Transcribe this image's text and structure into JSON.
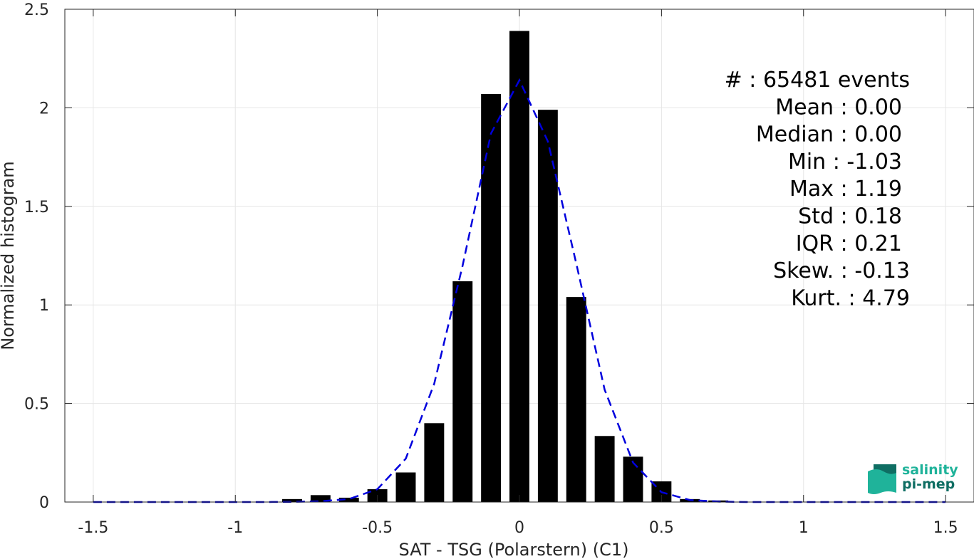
{
  "chart_data": {
    "type": "bar",
    "title": "",
    "xlabel": "SAT - TSG (Polarstern) (C1)",
    "ylabel": "Normalized histogram",
    "xlim": [
      -1.6,
      1.6
    ],
    "ylim": [
      0,
      2.5
    ],
    "grid": true,
    "xticks": [
      -1.5,
      -1,
      -0.5,
      0,
      0.5,
      1,
      1.5
    ],
    "xtick_labels": [
      "-1.5",
      "-1",
      "-0.5",
      "0",
      "0.5",
      "1",
      "1.5"
    ],
    "yticks": [
      0,
      0.5,
      1,
      1.5,
      2,
      2.5
    ],
    "ytick_labels": [
      "0",
      "0.5",
      "1",
      "1.5",
      "2",
      "2.5"
    ],
    "bar_width": 0.07,
    "bar_color": "#000000",
    "x": [
      -0.8,
      -0.7,
      -0.6,
      -0.5,
      -0.4,
      -0.3,
      -0.2,
      -0.1,
      0,
      0.1,
      0.2,
      0.3,
      0.4,
      0.5,
      0.6,
      0.7
    ],
    "values": [
      0.015,
      0.035,
      0.022,
      0.065,
      0.15,
      0.4,
      1.12,
      2.07,
      2.39,
      1.99,
      1.04,
      0.335,
      0.23,
      0.105,
      0.015,
      0.008
    ],
    "fit_curve": {
      "color": "#0000dd",
      "style": "dashed",
      "x": [
        -1.5,
        -1.4,
        -1.3,
        -1.2,
        -1.1,
        -1.0,
        -0.9,
        -0.8,
        -0.7,
        -0.6,
        -0.5,
        -0.4,
        -0.3,
        -0.2,
        -0.1,
        0,
        0.1,
        0.2,
        0.3,
        0.4,
        0.5,
        0.6,
        0.7,
        0.8,
        0.9,
        1.0,
        1.1,
        1.2,
        1.3,
        1.4,
        1.5
      ],
      "y": [
        0,
        0,
        0,
        0,
        0,
        0,
        0,
        0.001,
        0.004,
        0.015,
        0.065,
        0.22,
        0.6,
        1.2,
        1.87,
        2.14,
        1.83,
        1.21,
        0.57,
        0.2,
        0.05,
        0.01,
        0.002,
        0,
        0,
        0,
        0,
        0,
        0,
        0,
        0
      ]
    },
    "annotations": [
      {
        "label": "#  : 65481 events"
      },
      {
        "label": "Mean : 0.00"
      },
      {
        "label": "Median : 0.00"
      },
      {
        "label": "Min : -1.03"
      },
      {
        "label": "Max : 1.19"
      },
      {
        "label": "Std : 0.18"
      },
      {
        "label": "IQR : 0.21"
      },
      {
        "label": "Skew. : -0.13"
      },
      {
        "label": "Kurt. : 4.79"
      }
    ]
  },
  "logo": {
    "line1": "salinity",
    "line2": "pi-mep",
    "color_top": "#1fb39a",
    "color_bottom": "#0f6e63"
  }
}
